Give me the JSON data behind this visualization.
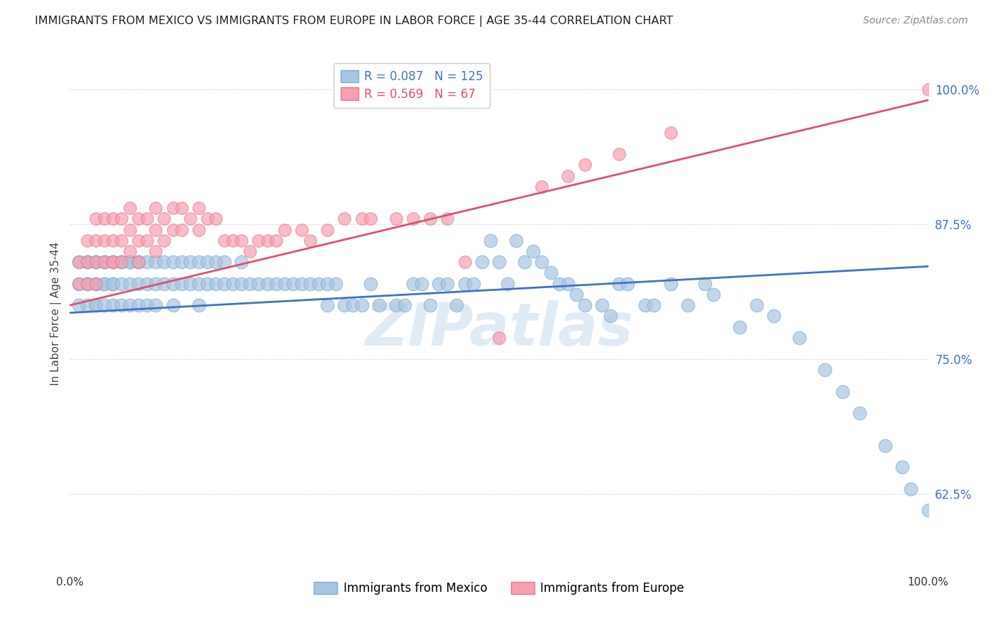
{
  "title": "IMMIGRANTS FROM MEXICO VS IMMIGRANTS FROM EUROPE IN LABOR FORCE | AGE 35-44 CORRELATION CHART",
  "source": "Source: ZipAtlas.com",
  "ylabel": "In Labor Force | Age 35-44",
  "legend_label_blue": "Immigrants from Mexico",
  "legend_label_pink": "Immigrants from Europe",
  "watermark": "ZIPatlas",
  "blue_R": 0.087,
  "blue_N": 125,
  "pink_R": 0.569,
  "pink_N": 67,
  "ytick_labels": [
    "62.5%",
    "75.0%",
    "87.5%",
    "100.0%"
  ],
  "ytick_values": [
    0.625,
    0.75,
    0.875,
    1.0
  ],
  "xlim": [
    0.0,
    1.0
  ],
  "ylim": [
    0.555,
    1.03
  ],
  "blue_color": "#a8c4e0",
  "blue_edge_color": "#7aafd4",
  "pink_color": "#f4a0b0",
  "pink_edge_color": "#e87890",
  "blue_line_color": "#4472c4",
  "pink_line_color": "#e05070",
  "title_color": "#222222",
  "source_color": "#888888",
  "ytick_color": "#4472c4",
  "background_color": "#ffffff",
  "grid_color": "#e0e0e0",
  "blue_line_y0": 0.793,
  "blue_line_y1": 0.836,
  "pink_line_y0": 0.8,
  "pink_line_y1": 0.99,
  "blue_x": [
    0.01,
    0.01,
    0.01,
    0.02,
    0.02,
    0.02,
    0.02,
    0.02,
    0.03,
    0.03,
    0.03,
    0.03,
    0.03,
    0.03,
    0.04,
    0.04,
    0.04,
    0.04,
    0.04,
    0.05,
    0.05,
    0.05,
    0.05,
    0.05,
    0.06,
    0.06,
    0.06,
    0.06,
    0.07,
    0.07,
    0.07,
    0.07,
    0.08,
    0.08,
    0.08,
    0.08,
    0.09,
    0.09,
    0.09,
    0.1,
    0.1,
    0.1,
    0.11,
    0.11,
    0.12,
    0.12,
    0.12,
    0.13,
    0.13,
    0.14,
    0.14,
    0.15,
    0.15,
    0.15,
    0.16,
    0.16,
    0.17,
    0.17,
    0.18,
    0.18,
    0.19,
    0.2,
    0.2,
    0.21,
    0.22,
    0.23,
    0.24,
    0.25,
    0.26,
    0.27,
    0.28,
    0.29,
    0.3,
    0.3,
    0.31,
    0.32,
    0.33,
    0.34,
    0.35,
    0.36,
    0.38,
    0.39,
    0.4,
    0.41,
    0.42,
    0.43,
    0.44,
    0.45,
    0.46,
    0.47,
    0.48,
    0.49,
    0.5,
    0.51,
    0.52,
    0.53,
    0.54,
    0.55,
    0.56,
    0.57,
    0.58,
    0.59,
    0.6,
    0.62,
    0.63,
    0.64,
    0.65,
    0.67,
    0.68,
    0.7,
    0.72,
    0.74,
    0.75,
    0.78,
    0.8,
    0.82,
    0.85,
    0.88,
    0.9,
    0.92,
    0.95,
    0.97,
    0.98,
    1.0
  ],
  "blue_y": [
    0.84,
    0.82,
    0.8,
    0.84,
    0.82,
    0.8,
    0.84,
    0.82,
    0.84,
    0.82,
    0.8,
    0.84,
    0.82,
    0.8,
    0.84,
    0.82,
    0.8,
    0.84,
    0.82,
    0.84,
    0.82,
    0.8,
    0.84,
    0.82,
    0.84,
    0.82,
    0.8,
    0.84,
    0.84,
    0.82,
    0.8,
    0.84,
    0.84,
    0.82,
    0.8,
    0.84,
    0.84,
    0.82,
    0.8,
    0.84,
    0.82,
    0.8,
    0.84,
    0.82,
    0.84,
    0.82,
    0.8,
    0.84,
    0.82,
    0.84,
    0.82,
    0.84,
    0.82,
    0.8,
    0.84,
    0.82,
    0.84,
    0.82,
    0.84,
    0.82,
    0.82,
    0.84,
    0.82,
    0.82,
    0.82,
    0.82,
    0.82,
    0.82,
    0.82,
    0.82,
    0.82,
    0.82,
    0.82,
    0.8,
    0.82,
    0.8,
    0.8,
    0.8,
    0.82,
    0.8,
    0.8,
    0.8,
    0.82,
    0.82,
    0.8,
    0.82,
    0.82,
    0.8,
    0.82,
    0.82,
    0.84,
    0.86,
    0.84,
    0.82,
    0.86,
    0.84,
    0.85,
    0.84,
    0.83,
    0.82,
    0.82,
    0.81,
    0.8,
    0.8,
    0.79,
    0.82,
    0.82,
    0.8,
    0.8,
    0.82,
    0.8,
    0.82,
    0.81,
    0.78,
    0.8,
    0.79,
    0.77,
    0.74,
    0.72,
    0.7,
    0.67,
    0.65,
    0.63,
    0.61
  ],
  "pink_x": [
    0.01,
    0.01,
    0.02,
    0.02,
    0.02,
    0.03,
    0.03,
    0.03,
    0.03,
    0.04,
    0.04,
    0.04,
    0.05,
    0.05,
    0.05,
    0.05,
    0.06,
    0.06,
    0.06,
    0.07,
    0.07,
    0.07,
    0.08,
    0.08,
    0.08,
    0.09,
    0.09,
    0.1,
    0.1,
    0.1,
    0.11,
    0.11,
    0.12,
    0.12,
    0.13,
    0.13,
    0.14,
    0.15,
    0.15,
    0.16,
    0.17,
    0.18,
    0.19,
    0.2,
    0.21,
    0.22,
    0.23,
    0.24,
    0.25,
    0.27,
    0.28,
    0.3,
    0.32,
    0.34,
    0.35,
    0.38,
    0.4,
    0.42,
    0.44,
    0.46,
    0.5,
    0.55,
    0.58,
    0.6,
    0.64,
    0.7,
    1.0
  ],
  "pink_y": [
    0.84,
    0.82,
    0.84,
    0.82,
    0.86,
    0.84,
    0.86,
    0.88,
    0.82,
    0.84,
    0.86,
    0.88,
    0.84,
    0.86,
    0.88,
    0.84,
    0.84,
    0.86,
    0.88,
    0.85,
    0.87,
    0.89,
    0.84,
    0.86,
    0.88,
    0.86,
    0.88,
    0.85,
    0.87,
    0.89,
    0.86,
    0.88,
    0.87,
    0.89,
    0.87,
    0.89,
    0.88,
    0.87,
    0.89,
    0.88,
    0.88,
    0.86,
    0.86,
    0.86,
    0.85,
    0.86,
    0.86,
    0.86,
    0.87,
    0.87,
    0.86,
    0.87,
    0.88,
    0.88,
    0.88,
    0.88,
    0.88,
    0.88,
    0.88,
    0.84,
    0.77,
    0.91,
    0.92,
    0.93,
    0.94,
    0.96,
    1.0
  ]
}
